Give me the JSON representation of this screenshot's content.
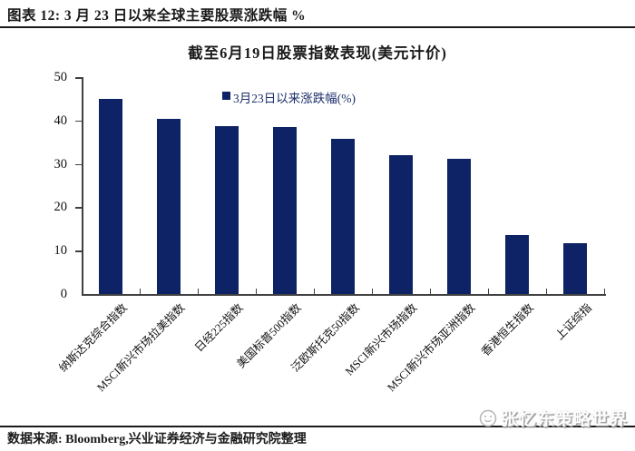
{
  "header": {
    "caption": "图表 12: 3 月 23 日以来全球主要股票涨跌幅 %"
  },
  "chart_data": {
    "type": "bar",
    "title": "截至6月19日股票指数表现(美元计价)",
    "legend_label": "3月23日以来涨跌幅(%)",
    "legend_position": "top-center",
    "categories": [
      "纳斯达克综合指数",
      "MSCI新兴市场拉美指数",
      "日经225指数",
      "美国标普500指数",
      "泛欧斯托克50指数",
      "MSCI新兴市场指数",
      "MSCI新兴市场亚洲指数",
      "香港恒生指数",
      "上证综指"
    ],
    "values": [
      45.0,
      40.3,
      38.7,
      38.4,
      35.8,
      32.1,
      31.1,
      13.5,
      11.8
    ],
    "xlabel": "",
    "ylabel": "",
    "ylim": [
      0,
      50
    ],
    "yticks": [
      0,
      10,
      20,
      30,
      40,
      50
    ],
    "grid": false,
    "bar_color": "#0e2365"
  },
  "footer": {
    "source": "数据来源: Bloomberg,兴业证券经济与金融研究院整理"
  },
  "watermark": {
    "text": "张忆东策略世界"
  }
}
